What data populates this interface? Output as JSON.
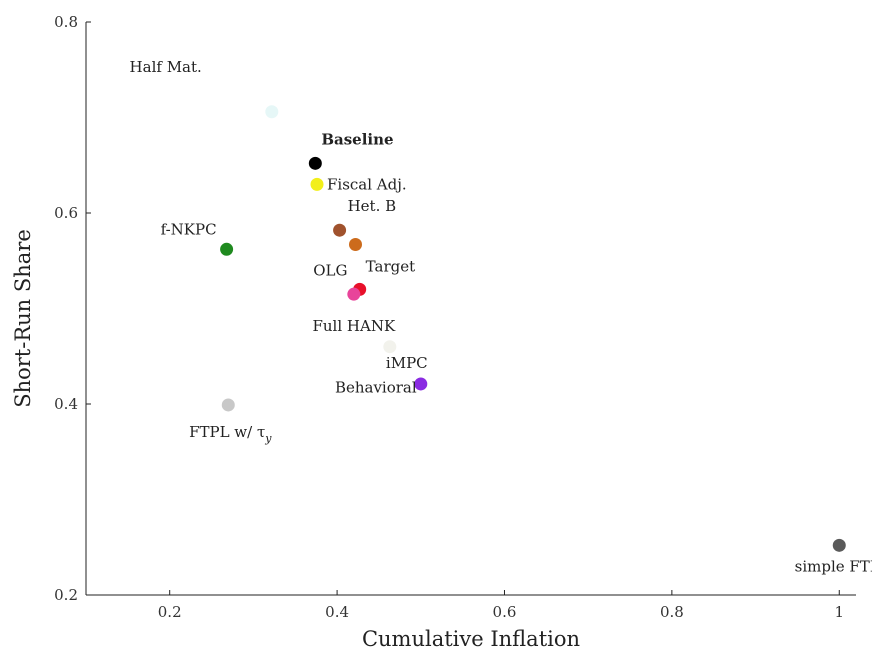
{
  "chart_data": {
    "type": "scatter",
    "xlabel": "Cumulative Inflation",
    "ylabel": "Short-Run Share",
    "xlim": [
      0.1,
      1.02
    ],
    "ylim": [
      0.2,
      0.8
    ],
    "xticks": [
      0.2,
      0.4,
      0.6,
      0.8,
      1
    ],
    "xtick_labels": [
      "0.2",
      "0.4",
      "0.6",
      "0.8",
      "1"
    ],
    "yticks": [
      0.2,
      0.4,
      0.6,
      0.8
    ],
    "ytick_labels": [
      "0.2",
      "0.4",
      "0.6",
      "0.8"
    ],
    "grid": false,
    "points": [
      {
        "label": "Baseline",
        "x": 0.374,
        "y": 0.652,
        "color": "#000000",
        "bold": true,
        "anchor": "above-right"
      },
      {
        "label": "Fiscal Adj.",
        "x": 0.376,
        "y": 0.63,
        "color": "#f2ef1a",
        "bold": false,
        "anchor": "right"
      },
      {
        "label": "Het. B",
        "x": 0.403,
        "y": 0.582,
        "color": "#a0522d",
        "bold": false,
        "anchor": "above-right"
      },
      {
        "label": "OLG",
        "x": 0.422,
        "y": 0.567,
        "color": "#cc6b1c",
        "bold": false,
        "anchor": "below-left"
      },
      {
        "label": "Target",
        "x": 0.427,
        "y": 0.52,
        "color": "#e8102a",
        "bold": false,
        "anchor": "above-right"
      },
      {
        "label": "Full HANK",
        "x": 0.42,
        "y": 0.515,
        "color": "#e8449a",
        "bold": false,
        "anchor": "below"
      },
      {
        "label": "f-NKPC",
        "x": 0.268,
        "y": 0.562,
        "color": "#1f8a1f",
        "bold": false,
        "anchor": "above-left"
      },
      {
        "label": "iMPC",
        "x": 0.5,
        "y": 0.421,
        "color": "#8a2be2",
        "bold": false,
        "anchor": "above"
      },
      {
        "label": "Behavioral",
        "x": 0.463,
        "y": 0.46,
        "color": "#f2f2ec",
        "bold": false,
        "anchor": "below-far"
      },
      {
        "label": "Half Mat.",
        "x": 0.322,
        "y": 0.706,
        "color": "#e6f7f7",
        "bold": false,
        "anchor": "below-left"
      },
      {
        "label": "FTPL w/ τ",
        "label_subscript": "y",
        "x": 0.27,
        "y": 0.399,
        "color": "#c8c8c8",
        "bold": false,
        "anchor": "below-right"
      },
      {
        "label": "simple FTPL",
        "x": 1.0,
        "y": 0.252,
        "color": "#5a5a5a",
        "bold": false,
        "anchor": "below"
      }
    ]
  }
}
